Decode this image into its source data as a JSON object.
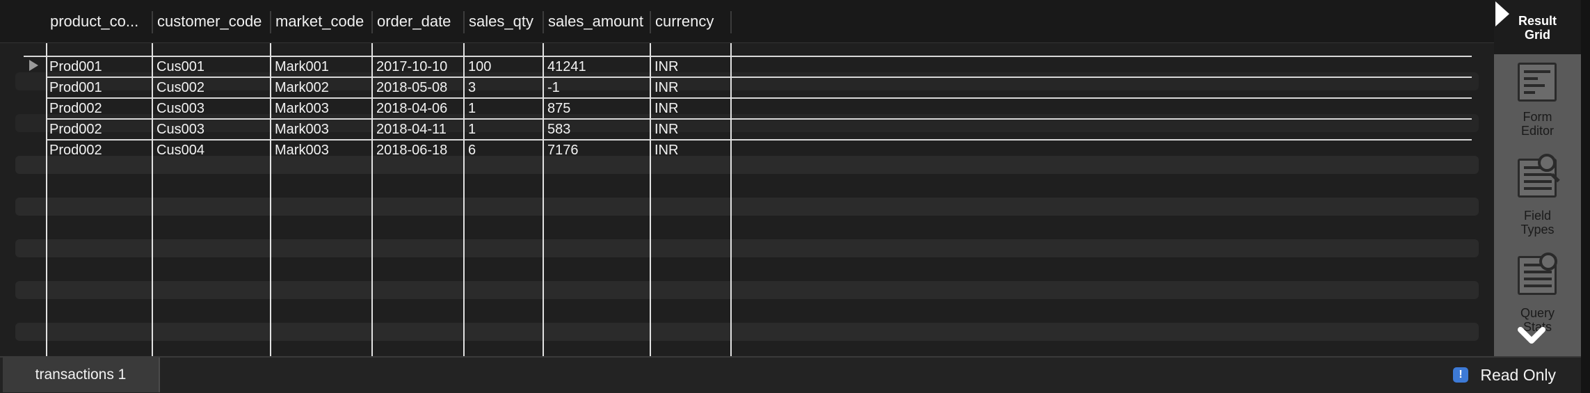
{
  "columns": [
    {
      "label": "product_co..."
    },
    {
      "label": "customer_code"
    },
    {
      "label": "market_code"
    },
    {
      "label": "order_date"
    },
    {
      "label": "sales_qty"
    },
    {
      "label": "sales_amount"
    },
    {
      "label": "currency"
    }
  ],
  "rows": [
    [
      "Prod001",
      "Cus001",
      "Mark001",
      "2017-10-10",
      "100",
      "41241",
      "INR"
    ],
    [
      "Prod001",
      "Cus002",
      "Mark002",
      "2018-05-08",
      "3",
      "-1",
      "INR"
    ],
    [
      "Prod002",
      "Cus003",
      "Mark003",
      "2018-04-06",
      "1",
      "875",
      "INR"
    ],
    [
      "Prod002",
      "Cus003",
      "Mark003",
      "2018-04-11",
      "1",
      "583",
      "INR"
    ],
    [
      "Prod002",
      "Cus004",
      "Mark003",
      "2018-06-18",
      "6",
      "7176",
      "INR"
    ]
  ],
  "side_panel": {
    "items": [
      {
        "label_line1": "Result",
        "label_line2": "Grid",
        "icon": "result-grid-icon",
        "active": true
      },
      {
        "label_line1": "Form",
        "label_line2": "Editor",
        "icon": "form-editor-icon",
        "active": false
      },
      {
        "label_line1": "Field",
        "label_line2": "Types",
        "icon": "field-types-icon",
        "active": false
      },
      {
        "label_line1": "Query",
        "label_line2": "Stats",
        "icon": "query-stats-icon",
        "active": false
      }
    ],
    "scroll_icon": "chevron-down-icon"
  },
  "bottom_bar": {
    "tab_label": "transactions 1",
    "status_label": "Read Only",
    "status_icon": "info-icon"
  },
  "colors": {
    "background": "#1f1f1f",
    "side_panel": "#5a5a5a",
    "info_icon": "#3d7ad6"
  }
}
